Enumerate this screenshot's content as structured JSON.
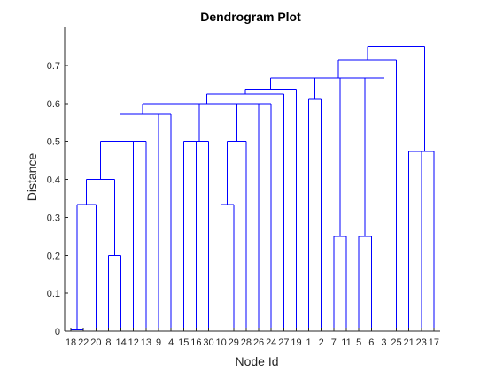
{
  "chart_data": {
    "type": "dendrogram",
    "title": "Dendrogram Plot",
    "xlabel": "Node Id",
    "ylabel": "Distance",
    "ylim": [
      0,
      0.8
    ],
    "yticks": [
      0,
      0.1,
      0.2,
      0.3,
      0.4,
      0.5,
      0.6,
      0.7
    ],
    "ytick_labels": [
      "0",
      "0.1",
      "0.2",
      "0.3",
      "0.4",
      "0.5",
      "0.6",
      "0.7"
    ],
    "leaf_order": [
      18,
      22,
      20,
      8,
      14,
      12,
      13,
      9,
      4,
      15,
      16,
      30,
      10,
      29,
      28,
      26,
      24,
      27,
      19,
      1,
      2,
      7,
      11,
      5,
      6,
      3,
      25,
      21,
      23,
      17
    ],
    "leaf_labels": [
      "18",
      "22",
      "20",
      "8",
      "14",
      "12",
      "13",
      "9",
      "4",
      "15",
      "16",
      "30",
      "10",
      "29",
      "28",
      "26",
      "24",
      "27",
      "19",
      "1",
      "2",
      "7",
      "11",
      "5",
      "6",
      "3",
      "25",
      "21",
      "23",
      "17"
    ],
    "merges": [
      {
        "id": "A",
        "children": [
          "18",
          "22"
        ],
        "distance": 0.003
      },
      {
        "id": "B",
        "children": [
          "A",
          "20"
        ],
        "distance": 0.333
      },
      {
        "id": "C",
        "children": [
          "8",
          "14"
        ],
        "distance": 0.2
      },
      {
        "id": "D",
        "children": [
          "B",
          "C"
        ],
        "distance": 0.4
      },
      {
        "id": "E",
        "children": [
          "12",
          "13"
        ],
        "distance": 0.5
      },
      {
        "id": "F",
        "children": [
          "D",
          "E"
        ],
        "distance": 0.5
      },
      {
        "id": "G",
        "children": [
          "9",
          "4"
        ],
        "distance": 0.571
      },
      {
        "id": "H",
        "children": [
          "F",
          "G"
        ],
        "distance": 0.571
      },
      {
        "id": "I",
        "children": [
          "15",
          "16"
        ],
        "distance": 0.5
      },
      {
        "id": "J",
        "children": [
          "I",
          "30"
        ],
        "distance": 0.5
      },
      {
        "id": "K",
        "children": [
          "10",
          "29"
        ],
        "distance": 0.333
      },
      {
        "id": "L",
        "children": [
          "K",
          "28"
        ],
        "distance": 0.5
      },
      {
        "id": "M",
        "children": [
          "H",
          "J",
          "L",
          "26",
          "24"
        ],
        "distance": 0.6
      },
      {
        "id": "N",
        "children": [
          "M",
          "27"
        ],
        "distance": 0.625
      },
      {
        "id": "O",
        "children": [
          "N",
          "19"
        ],
        "distance": 0.636
      },
      {
        "id": "P",
        "children": [
          "1",
          "2"
        ],
        "distance": 0.611
      },
      {
        "id": "Q",
        "children": [
          "O",
          "P"
        ],
        "distance": 0.667
      },
      {
        "id": "R",
        "children": [
          "7",
          "11"
        ],
        "distance": 0.25
      },
      {
        "id": "S",
        "children": [
          "5",
          "6"
        ],
        "distance": 0.25
      },
      {
        "id": "T",
        "children": [
          "Q",
          "R",
          "S",
          "3"
        ],
        "distance": 0.667
      },
      {
        "id": "U",
        "children": [
          "T",
          "25"
        ],
        "distance": 0.714
      },
      {
        "id": "V",
        "children": [
          "21",
          "23"
        ],
        "distance": 0.474
      },
      {
        "id": "W",
        "children": [
          "V",
          "17"
        ],
        "distance": 0.474
      },
      {
        "id": "X",
        "children": [
          "U",
          "W"
        ],
        "distance": 0.75
      }
    ],
    "grid": false,
    "legend": "none",
    "line_color": "#0000ff"
  }
}
